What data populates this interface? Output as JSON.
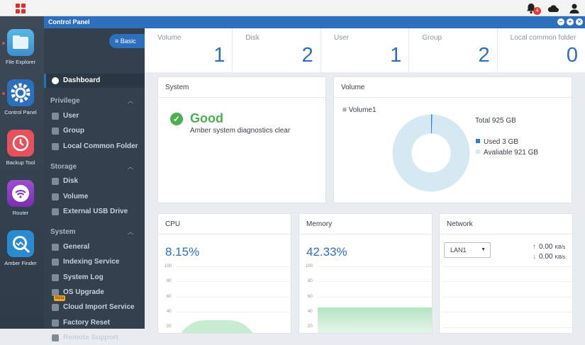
{
  "topbar": {
    "notification_count": "4",
    "icons": [
      "app-grid-icon",
      "bell-icon",
      "cloud-icon",
      "user-icon"
    ]
  },
  "dock": {
    "apps": [
      {
        "label": "File Explorer",
        "icon": "folder-icon",
        "color": "#4aa3df"
      },
      {
        "label": "Control Panel",
        "icon": "gear-icon",
        "color": "#2c6fbd"
      },
      {
        "label": "Backup Tool",
        "icon": "backup-clock-icon",
        "color": "#e8505b"
      },
      {
        "label": "Router",
        "icon": "wifi-icon",
        "color": "#8e3fbf"
      },
      {
        "label": "Amber Finder",
        "icon": "search-icon",
        "color": "#2a8bd0"
      }
    ]
  },
  "window": {
    "title": "Control Panel"
  },
  "sidebar": {
    "basic_label": "Basic",
    "dashboard": "Dashboard",
    "sections": [
      {
        "title": "Privilege",
        "items": [
          "User",
          "Group",
          "Local Common Folder"
        ]
      },
      {
        "title": "Storage",
        "items": [
          "Disk",
          "Volume",
          "External USB Drive"
        ]
      },
      {
        "title": "System",
        "items": [
          "General",
          "Indexing Service",
          "System Log",
          "OS Upgrade",
          "Cloud Import Service",
          "Factory Reset",
          "Remote Support"
        ]
      }
    ],
    "beta_badge": "Beta"
  },
  "stats": [
    {
      "label": "Volume",
      "value": "1"
    },
    {
      "label": "Disk",
      "value": "2"
    },
    {
      "label": "User",
      "value": "1"
    },
    {
      "label": "Group",
      "value": "2"
    },
    {
      "label": "Local common folder",
      "value": "0"
    }
  ],
  "system_panel": {
    "title": "System",
    "status": "Good",
    "message": "Amber system diagnostics clear"
  },
  "volume_panel": {
    "title": "Volume",
    "volume_name": "Volume1",
    "total": "Total 925 GB",
    "used": "Used 3 GB",
    "available": "Avaliable 921 GB",
    "used_color": "#2c7fd0",
    "available_color": "#d4e9f2"
  },
  "cpu_panel": {
    "title": "CPU",
    "percent": "8.15%",
    "ticks": [
      "100",
      "80",
      "60",
      "40",
      "20"
    ],
    "fill_color": "#c8ecd2"
  },
  "memory_panel": {
    "title": "Memory",
    "percent": "42.33%",
    "ticks": [
      "100",
      "80",
      "60",
      "40",
      "20"
    ],
    "fill_color": "#c8ecd2"
  },
  "network_panel": {
    "title": "Network",
    "interface": "LAN1",
    "upload": "0.00",
    "download": "0.00",
    "unit": "KB/s"
  }
}
